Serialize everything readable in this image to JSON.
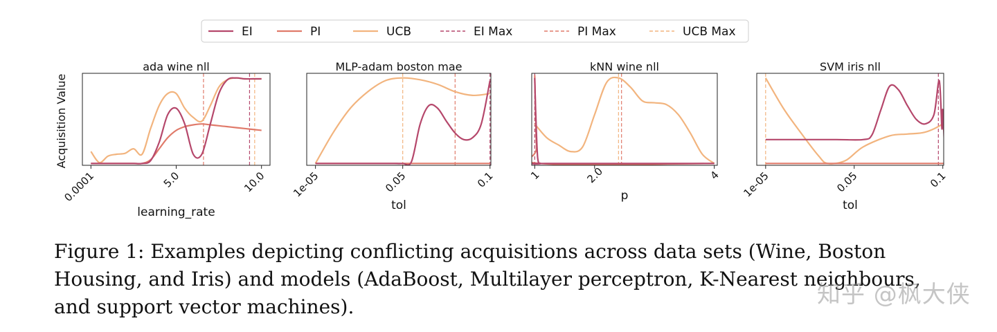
{
  "legend": [
    {
      "label": "EI",
      "color": "#b5476b",
      "dash": false
    },
    {
      "label": "PI",
      "color": "#e07a6a",
      "dash": false
    },
    {
      "label": "UCB",
      "color": "#f2b47e",
      "dash": false
    },
    {
      "label": "EI Max",
      "color": "#b5476b",
      "dash": true
    },
    {
      "label": "PI Max",
      "color": "#e07a6a",
      "dash": true
    },
    {
      "label": "UCB Max",
      "color": "#f2b47e",
      "dash": true
    }
  ],
  "ylabel": "Acquisition Value",
  "colors": {
    "EI": "#b5476b",
    "PI": "#e07a6a",
    "UCB": "#f2b47e"
  },
  "chart_data": [
    {
      "type": "line",
      "title": "ada wine nll",
      "xlabel": "learning_rate",
      "xticks": [
        {
          "v": 0.0001,
          "label": "0.0001"
        },
        {
          "v": 5.0,
          "label": "5.0"
        },
        {
          "v": 10.0,
          "label": "10.0"
        }
      ],
      "xlim": [
        -0.5,
        10.5
      ],
      "ylim": [
        0,
        1
      ],
      "series": [
        {
          "name": "EI",
          "x": [
            0.0,
            0.5,
            1.0,
            1.5,
            2.0,
            2.5,
            3.0,
            3.5,
            4.0,
            4.5,
            5.0,
            5.5,
            6.0,
            6.5,
            7.0,
            7.5,
            8.0,
            8.5,
            9.0,
            9.5,
            10.0
          ],
          "values": [
            0.02,
            0.02,
            0.02,
            0.02,
            0.02,
            0.02,
            0.02,
            0.05,
            0.25,
            0.55,
            0.62,
            0.45,
            0.12,
            0.12,
            0.45,
            0.78,
            0.93,
            0.95,
            0.94,
            0.94,
            0.94
          ]
        },
        {
          "name": "PI",
          "x": [
            0.0,
            0.5,
            1.0,
            1.5,
            2.0,
            2.5,
            3.0,
            3.5,
            4.0,
            4.5,
            5.0,
            5.5,
            6.0,
            6.5,
            7.0,
            7.5,
            8.0,
            8.5,
            9.0,
            9.5,
            10.0
          ],
          "values": [
            0.02,
            0.02,
            0.02,
            0.02,
            0.02,
            0.02,
            0.02,
            0.06,
            0.18,
            0.3,
            0.38,
            0.42,
            0.44,
            0.45,
            0.44,
            0.43,
            0.42,
            0.41,
            0.4,
            0.39,
            0.38
          ]
        },
        {
          "name": "UCB",
          "x": [
            0.0,
            0.5,
            1.0,
            1.5,
            2.0,
            2.5,
            3.0,
            3.5,
            4.0,
            4.5,
            5.0,
            5.5,
            6.0,
            6.5,
            7.0,
            7.5,
            8.0,
            8.5,
            9.0,
            9.5,
            10.0
          ],
          "values": [
            0.15,
            0.03,
            0.1,
            0.12,
            0.13,
            0.18,
            0.12,
            0.4,
            0.65,
            0.78,
            0.78,
            0.62,
            0.52,
            0.48,
            0.65,
            0.85,
            0.93,
            0.95,
            0.94,
            0.94,
            0.94
          ]
        }
      ],
      "vlines": {
        "EI": 9.3,
        "PI": 6.6,
        "UCB": 9.6
      }
    },
    {
      "type": "line",
      "title": "MLP-adam boston mae",
      "xlabel": "tol",
      "xticks": [
        {
          "v": 1e-05,
          "label": "1e-05"
        },
        {
          "v": 0.05,
          "label": "0.05"
        },
        {
          "v": 0.1,
          "label": "0.1"
        }
      ],
      "xlim": [
        -0.005,
        0.1005
      ],
      "ylim": [
        0,
        1
      ],
      "series": [
        {
          "name": "EI",
          "x": [
            0.0,
            0.01,
            0.02,
            0.03,
            0.04,
            0.045,
            0.05,
            0.055,
            0.06,
            0.065,
            0.07,
            0.075,
            0.08,
            0.085,
            0.09,
            0.095,
            0.1
          ],
          "values": [
            0.02,
            0.02,
            0.02,
            0.02,
            0.02,
            0.02,
            0.02,
            0.04,
            0.45,
            0.65,
            0.62,
            0.48,
            0.35,
            0.28,
            0.3,
            0.45,
            0.92
          ]
        },
        {
          "name": "PI",
          "x": [
            0.0,
            0.1
          ],
          "values": [
            0.02,
            0.02
          ]
        },
        {
          "name": "UCB",
          "x": [
            0.0,
            0.01,
            0.02,
            0.03,
            0.04,
            0.05,
            0.06,
            0.07,
            0.08,
            0.09,
            0.1
          ],
          "values": [
            0.02,
            0.35,
            0.62,
            0.8,
            0.92,
            0.95,
            0.93,
            0.88,
            0.8,
            0.76,
            0.78
          ]
        }
      ],
      "vlines": {
        "EI": 0.1,
        "PI": 0.08,
        "UCB": 0.05
      }
    },
    {
      "type": "line",
      "title": "kNN wine nll",
      "xlabel": "p",
      "xticks": [
        {
          "v": 1,
          "label": "1"
        },
        {
          "v": 2.0,
          "label": "2.0"
        },
        {
          "v": 4,
          "label": "4"
        }
      ],
      "xlim": [
        0.95,
        4.05
      ],
      "ylim": [
        0,
        1
      ],
      "series": [
        {
          "name": "EI",
          "x": [
            1.0,
            1.02,
            1.05,
            1.1,
            1.2,
            4.0
          ],
          "values": [
            0.95,
            0.5,
            0.08,
            0.02,
            0.02,
            0.02
          ]
        },
        {
          "name": "PI",
          "x": [
            1.0,
            1.03,
            1.08,
            4.0
          ],
          "values": [
            0.98,
            0.2,
            0.02,
            0.02
          ]
        },
        {
          "name": "UCB",
          "x": [
            1.0,
            1.2,
            1.4,
            1.6,
            1.8,
            2.0,
            2.2,
            2.4,
            2.6,
            2.8,
            3.0,
            3.2,
            3.4,
            3.6,
            3.8,
            4.0
          ],
          "values": [
            0.45,
            0.3,
            0.22,
            0.15,
            0.2,
            0.55,
            0.9,
            0.95,
            0.85,
            0.7,
            0.68,
            0.66,
            0.55,
            0.35,
            0.12,
            0.02
          ]
        }
      ],
      "vlines": {
        "EI": 1.0,
        "PI": 2.45,
        "UCB": 2.4
      }
    },
    {
      "type": "line",
      "title": "SVM iris nll",
      "xlabel": "tol",
      "xticks": [
        {
          "v": 1e-05,
          "label": "1e-05"
        },
        {
          "v": 0.05,
          "label": "0.05"
        },
        {
          "v": 0.1,
          "label": "0.1"
        }
      ],
      "xlim": [
        -0.005,
        0.1005
      ],
      "ylim": [
        0,
        1
      ],
      "series": [
        {
          "name": "EI",
          "x": [
            0.0,
            0.02,
            0.04,
            0.055,
            0.06,
            0.065,
            0.07,
            0.075,
            0.08,
            0.085,
            0.09,
            0.095,
            0.098,
            0.0995,
            0.1,
            0.1015,
            0.1035,
            0.105
          ],
          "values": [
            0.28,
            0.28,
            0.28,
            0.28,
            0.33,
            0.6,
            0.86,
            0.82,
            0.65,
            0.5,
            0.45,
            0.55,
            0.92,
            0.4,
            0.6,
            0.05,
            0.2,
            0.65
          ]
        },
        {
          "name": "PI",
          "x": [
            0.0,
            0.105
          ],
          "values": [
            0.02,
            0.02
          ]
        },
        {
          "name": "UCB",
          "x": [
            0.0,
            0.01,
            0.02,
            0.03,
            0.035,
            0.045,
            0.055,
            0.07,
            0.08,
            0.09,
            0.1,
            0.105
          ],
          "values": [
            0.95,
            0.62,
            0.35,
            0.1,
            0.02,
            0.05,
            0.2,
            0.32,
            0.34,
            0.36,
            0.45,
            0.55
          ]
        }
      ],
      "vlines": {
        "EI": 0.0975,
        "PI": 0.1025,
        "UCB": 0.0
      }
    }
  ],
  "caption": "Figure 1: Examples depicting conflicting acquisitions across data sets (Wine, Boston Housing, and Iris) and models (AdaBoost, Multilayer perceptron, K-Nearest neighbours, and support vector machines).",
  "watermark": "知乎 @枫大侠"
}
